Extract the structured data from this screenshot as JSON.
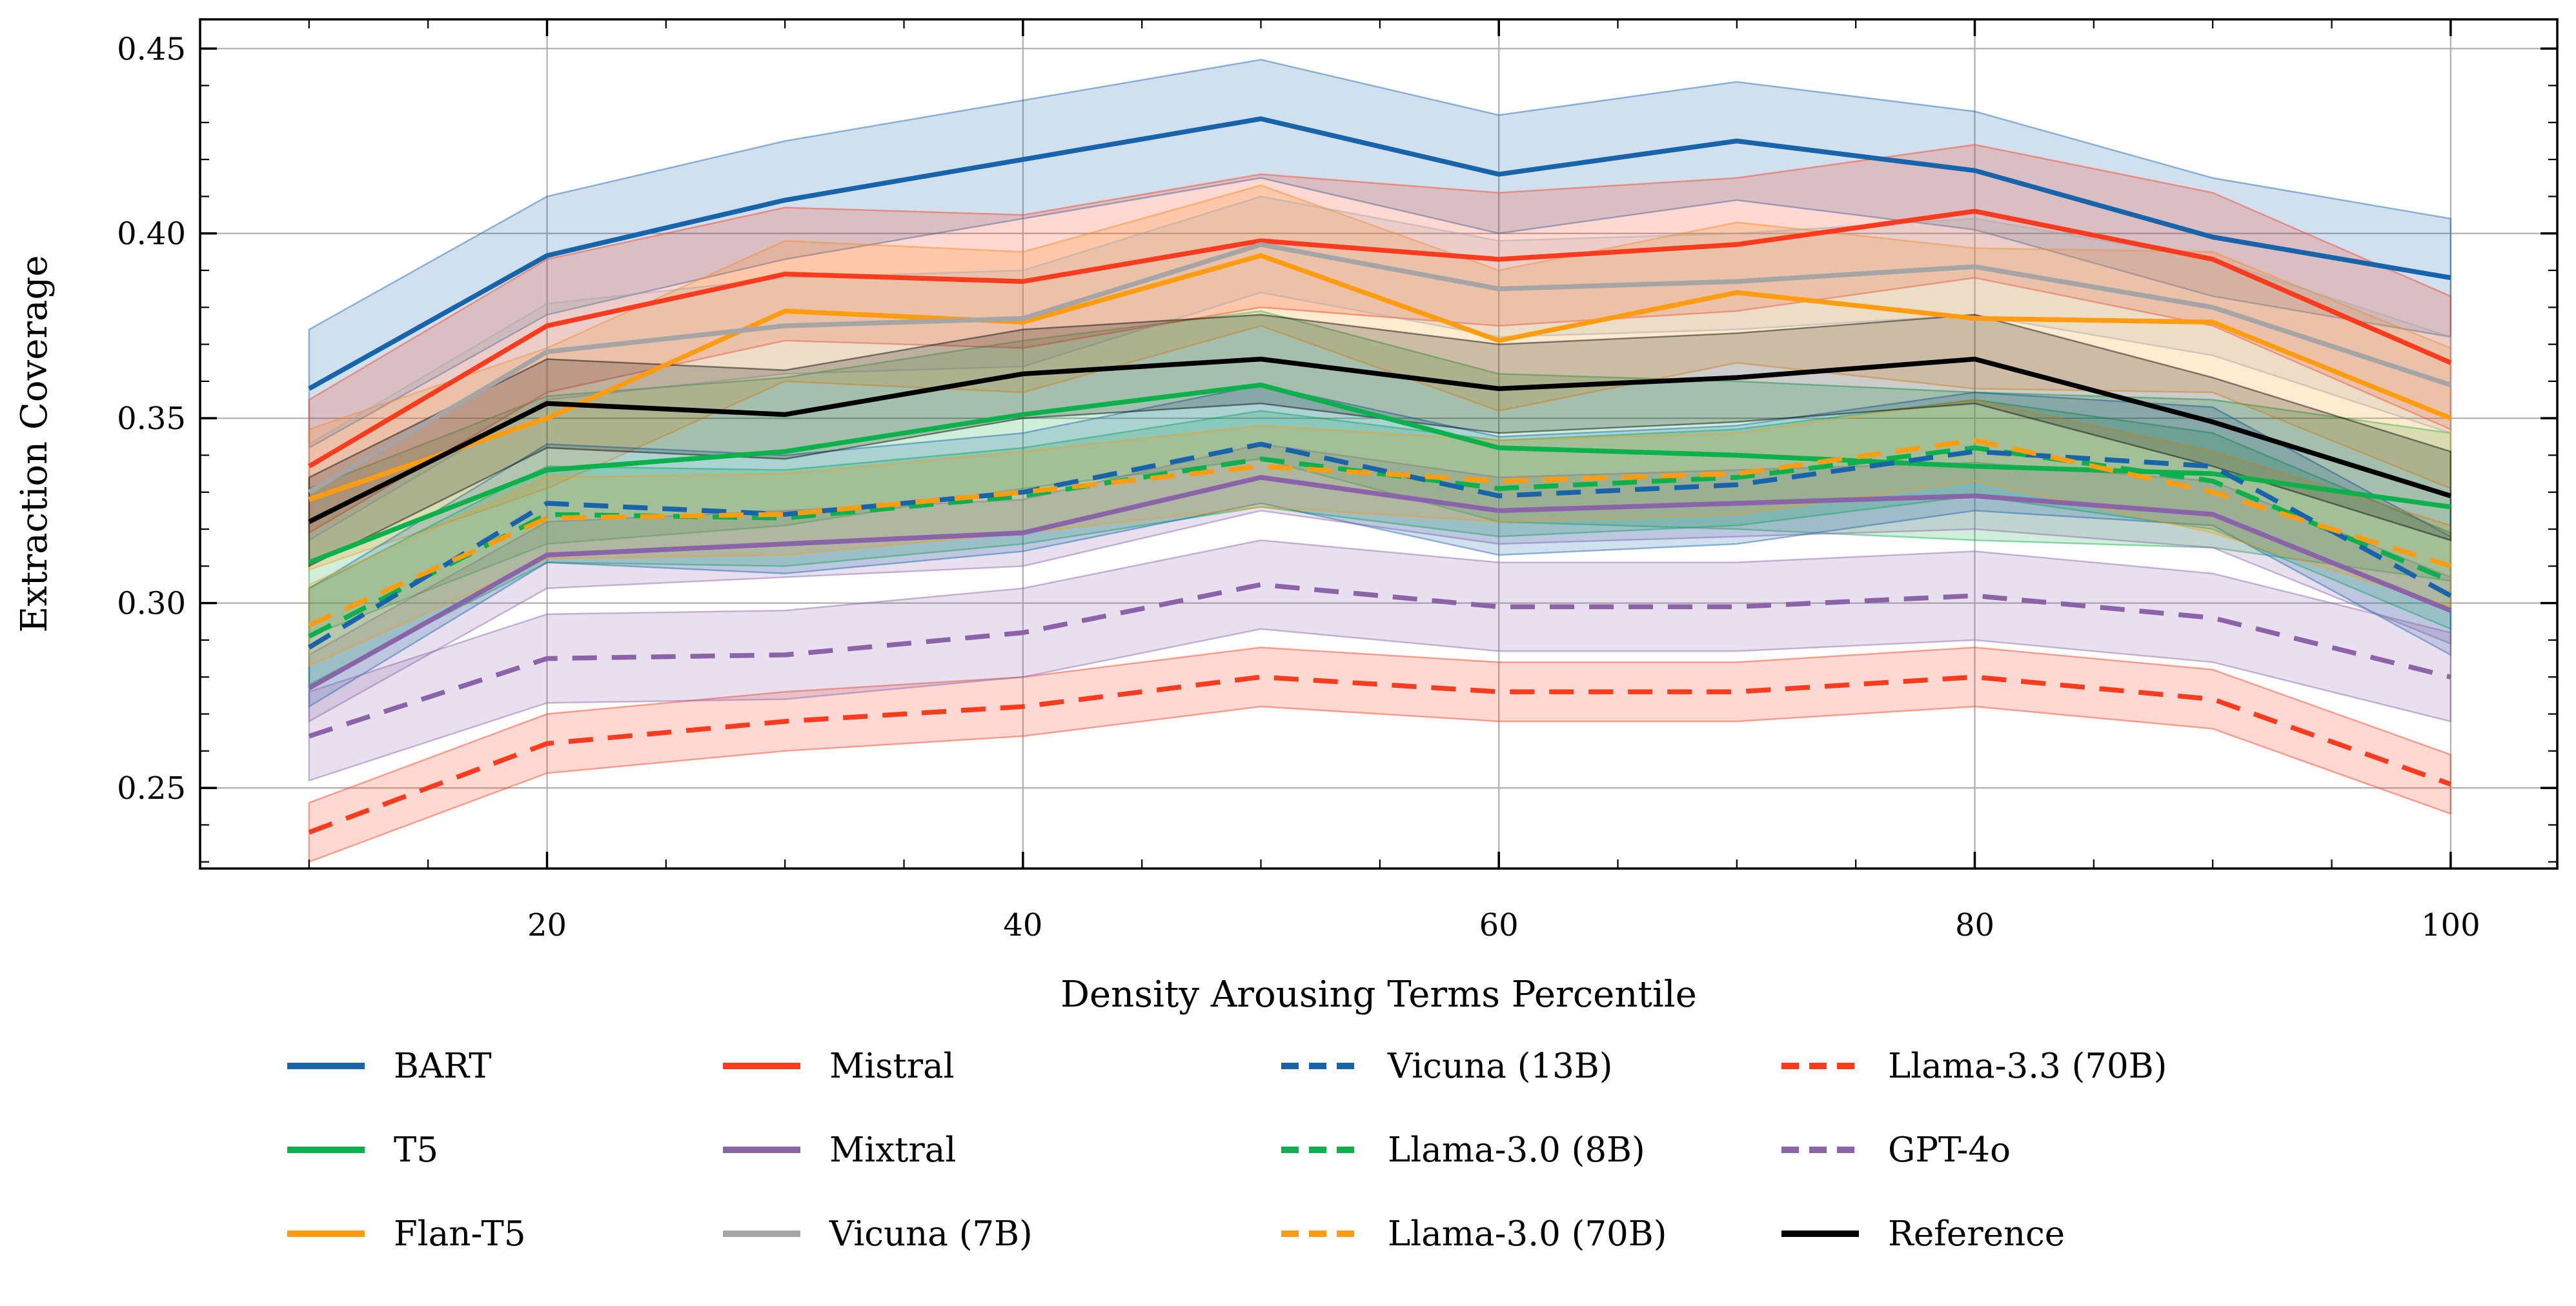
{
  "figure": {
    "background": "#ffffff",
    "spine_color": "#000000",
    "grid_color": "#b0b0b0"
  },
  "chart_data": {
    "type": "line",
    "title": "",
    "xlabel": "Density Arousing Terms Percentile",
    "ylabel": "Extraction Coverage",
    "x": [
      10,
      20,
      30,
      40,
      50,
      60,
      70,
      80,
      90,
      100
    ],
    "xlim": [
      5.42,
      104.48
    ],
    "ylim": [
      0.2282,
      0.4579
    ],
    "xticks": [
      {
        "v": 20,
        "label": "20"
      },
      {
        "v": 40,
        "label": "40"
      },
      {
        "v": 60,
        "label": "60"
      },
      {
        "v": 80,
        "label": "80"
      },
      {
        "v": 100,
        "label": "100"
      }
    ],
    "yticks": [
      {
        "v": 0.25,
        "label": "0.25"
      },
      {
        "v": 0.3,
        "label": "0.30"
      },
      {
        "v": 0.35,
        "label": "0.35"
      },
      {
        "v": 0.4,
        "label": "0.40"
      },
      {
        "v": 0.45,
        "label": "0.45"
      }
    ],
    "x_minor_step": 5,
    "y_minor_step": 0.01,
    "grid": true,
    "legend_position": "below-chart, 4 columns",
    "series": [
      {
        "name": "BART",
        "slug": "bart",
        "color": "#1764ab",
        "line_style": "solid",
        "values": [
          0.358,
          0.394,
          0.409,
          0.42,
          0.431,
          0.416,
          0.425,
          0.417,
          0.399,
          0.388
        ],
        "band_halfwidth": 0.016
      },
      {
        "name": "T5",
        "slug": "t5",
        "color": "#0db14b",
        "line_style": "solid",
        "values": [
          0.311,
          0.336,
          0.341,
          0.351,
          0.359,
          0.342,
          0.34,
          0.337,
          0.335,
          0.326
        ],
        "band_halfwidth": 0.02
      },
      {
        "name": "Flan-T5",
        "slug": "flan-t5",
        "color": "#ff9c0f",
        "line_style": "solid",
        "values": [
          0.328,
          0.35,
          0.379,
          0.376,
          0.394,
          0.371,
          0.384,
          0.377,
          0.376,
          0.35
        ],
        "band_halfwidth": 0.019
      },
      {
        "name": "Mistral",
        "slug": "mistral",
        "color": "#fa3b1d",
        "line_style": "solid",
        "values": [
          0.337,
          0.375,
          0.389,
          0.387,
          0.398,
          0.393,
          0.397,
          0.406,
          0.393,
          0.365
        ],
        "band_halfwidth": 0.018
      },
      {
        "name": "Mixtral",
        "slug": "mixtral",
        "color": "#8a63a9",
        "line_style": "solid",
        "values": [
          0.277,
          0.313,
          0.316,
          0.319,
          0.334,
          0.325,
          0.327,
          0.329,
          0.324,
          0.298
        ],
        "band_halfwidth": 0.009
      },
      {
        "name": "Vicuna (7B)",
        "slug": "vicuna-7b",
        "color": "#a5a5a5",
        "line_style": "solid",
        "values": [
          0.33,
          0.368,
          0.375,
          0.377,
          0.397,
          0.385,
          0.387,
          0.391,
          0.38,
          0.359
        ],
        "band_halfwidth": 0.013
      },
      {
        "name": "Vicuna (13B)",
        "slug": "vicuna-13b",
        "color": "#1764ab",
        "line_style": "dashed",
        "values": [
          0.288,
          0.327,
          0.324,
          0.33,
          0.343,
          0.329,
          0.332,
          0.341,
          0.337,
          0.302
        ],
        "band_halfwidth": 0.016
      },
      {
        "name": "Llama-3.0 (8B)",
        "slug": "llama-30-8b",
        "color": "#0db14b",
        "line_style": "dashed",
        "values": [
          0.291,
          0.324,
          0.323,
          0.329,
          0.339,
          0.331,
          0.334,
          0.342,
          0.333,
          0.306
        ],
        "band_halfwidth": 0.013
      },
      {
        "name": "Llama-3.0 (70B)",
        "slug": "llama-30-70b",
        "color": "#ff9c0f",
        "line_style": "dashed",
        "values": [
          0.294,
          0.323,
          0.324,
          0.33,
          0.337,
          0.333,
          0.335,
          0.344,
          0.33,
          0.31
        ],
        "band_halfwidth": 0.011
      },
      {
        "name": "Llama-3.3 (70B)",
        "slug": "llama-33-70b",
        "color": "#fa3b1d",
        "line_style": "dashed",
        "values": [
          0.238,
          0.262,
          0.268,
          0.272,
          0.28,
          0.276,
          0.276,
          0.28,
          0.274,
          0.251
        ],
        "band_halfwidth": 0.008
      },
      {
        "name": "GPT-4o",
        "slug": "gpt-4o",
        "color": "#8a63a9",
        "line_style": "dashed",
        "values": [
          0.264,
          0.285,
          0.286,
          0.292,
          0.305,
          0.299,
          0.299,
          0.302,
          0.296,
          0.28
        ],
        "band_halfwidth": 0.012
      },
      {
        "name": "Reference",
        "slug": "reference",
        "color": "#000000",
        "line_style": "solid",
        "values": [
          0.322,
          0.354,
          0.351,
          0.362,
          0.366,
          0.358,
          0.361,
          0.366,
          0.349,
          0.329
        ],
        "band_halfwidth": 0.012
      }
    ]
  }
}
